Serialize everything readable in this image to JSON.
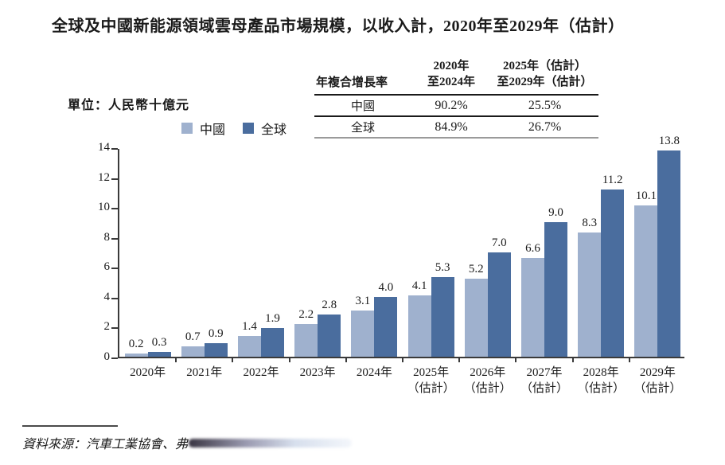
{
  "page": {
    "title": "全球及中國新能源領域雲母產品市場規模，以收入計，2020年至2029年（估計）",
    "unit_label": "單位：人民幣十億元",
    "source_label": "資料來源：汽車工業協會、弗"
  },
  "legend": {
    "items": [
      {
        "label": "中國",
        "color": "#9fb1ce"
      },
      {
        "label": "全球",
        "color": "#4a6d9e"
      }
    ]
  },
  "cagr_table": {
    "metric_header": "年複合增長率",
    "period1_header": "2020年\n至2024年",
    "period2_header": "2025年（估計）\n至2029年（估計）",
    "rows": [
      {
        "label": "中國",
        "period1": "90.2%",
        "period2": "25.5%"
      },
      {
        "label": "全球",
        "period1": "84.9%",
        "period2": "26.7%"
      }
    ]
  },
  "chart_data": {
    "type": "bar",
    "title": "全球及中國新能源領域雲母產品市場規模，以收入計，2020年至2029年（估計）",
    "unit": "人民幣十億元",
    "categories": [
      "2020年",
      "2021年",
      "2022年",
      "2023年",
      "2024年",
      "2025年\n（估計）",
      "2026年\n（估計）",
      "2027年\n（估計）",
      "2028年\n（估計）",
      "2029年\n（估計）"
    ],
    "series": [
      {
        "name": "中國",
        "color": "#9fb1ce",
        "values": [
          0.2,
          0.7,
          1.4,
          2.2,
          3.1,
          4.1,
          5.2,
          6.6,
          8.3,
          10.1
        ]
      },
      {
        "name": "全球",
        "color": "#4a6d9e",
        "values": [
          0.3,
          0.9,
          1.9,
          2.8,
          4.0,
          5.3,
          7.0,
          9.0,
          11.2,
          13.8
        ]
      }
    ],
    "ylim": [
      0,
      14
    ],
    "ytick_step": 2,
    "grid": false,
    "legend_position": "top",
    "value_labels": true,
    "axis_color": "#3a3a3a"
  }
}
